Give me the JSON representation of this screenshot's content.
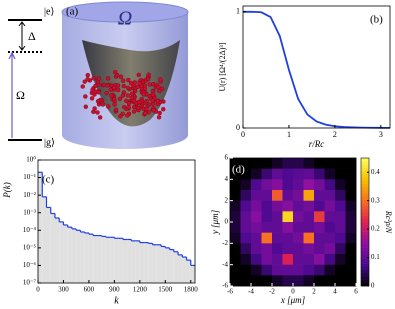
{
  "panels": {
    "a": {
      "label": "(a)",
      "excited": "|e⟩",
      "detuning": "Δ",
      "rabi": "Ω",
      "ground": "|g⟩",
      "cloud": "Ω"
    },
    "b": {
      "label": "(b)"
    },
    "c": {
      "label": "(c)"
    },
    "d": {
      "label": "(d)"
    }
  },
  "chart_data": [
    {
      "type": "line",
      "ylabel": "U(r) [Ω⁴/(2Δ)³]",
      "xlabel": "r/Rc",
      "color": "#1f3fe0",
      "x": [
        0,
        0.2,
        0.4,
        0.6,
        0.8,
        1.0,
        1.2,
        1.4,
        1.6,
        1.8,
        2.0,
        2.2,
        2.4,
        2.6,
        2.8,
        3.0,
        3.2
      ],
      "values": [
        1,
        1,
        0.996,
        0.955,
        0.792,
        0.5,
        0.251,
        0.117,
        0.056,
        0.029,
        0.015,
        0.0088,
        0.0052,
        0.0032,
        0.0021,
        0.0014,
        0.0009
      ],
      "xlim": [
        0,
        3.2
      ],
      "ylim": [
        0,
        1.05
      ],
      "xticks": [
        0,
        1,
        2,
        3
      ],
      "yticks": [
        0,
        1
      ]
    },
    {
      "type": "histogram",
      "ylabel": "P(k)",
      "xlabel": "k",
      "color": "#1f3fe0",
      "fill": "#e0e0e0",
      "log_y": true,
      "bins": [
        0,
        50,
        100,
        150,
        200,
        250,
        300,
        350,
        400,
        450,
        500,
        550,
        600,
        650,
        700,
        750,
        800,
        850,
        900,
        950,
        1000,
        1050,
        1100,
        1150,
        1200,
        1250,
        1300,
        1350,
        1400,
        1450,
        1500,
        1550,
        1600,
        1650,
        1700,
        1750,
        1800,
        1850
      ],
      "values": [
        0.2,
        0.008,
        0.002,
        0.0009,
        0.0005,
        0.0003,
        0.0002,
        0.00015,
        0.00012,
        0.0001,
        8e-05,
        7e-05,
        6e-05,
        5e-05,
        5e-05,
        4.5e-05,
        4e-05,
        4e-05,
        3.5e-05,
        3.5e-05,
        3e-05,
        3e-05,
        2.5e-05,
        2.5e-05,
        2e-05,
        2e-05,
        1.8e-05,
        1.5e-05,
        1.5e-05,
        1.2e-05,
        1e-05,
        8e-06,
        6e-06,
        4e-06,
        3e-06,
        2e-06,
        1e-06
      ],
      "xlim": [
        0,
        1850
      ],
      "ylim": [
        1e-07,
        1
      ],
      "xticks": [
        0,
        300,
        600,
        900,
        1200,
        1500,
        1800
      ],
      "yticks": [
        {
          "value": 1e-07,
          "label": "10⁻⁷"
        },
        {
          "value": 1e-06,
          "label": "10⁻⁶"
        },
        {
          "value": 1e-05,
          "label": "10⁻⁵"
        },
        {
          "value": 0.0001,
          "label": "10⁻⁴"
        },
        {
          "value": 0.001,
          "label": "10⁻³"
        },
        {
          "value": 0.01,
          "label": "10⁻²"
        },
        {
          "value": 0.1,
          "label": "10⁻¹"
        },
        {
          "value": 1,
          "label": "10⁰"
        }
      ]
    },
    {
      "type": "heatmap",
      "xlabel": "x [μm]",
      "ylabel": "y [μm]",
      "colorbar_label": "Rc²ρ/N",
      "colormap": [
        "#000000",
        "#4a0a90",
        "#9010a0",
        "#e02050",
        "#f87020",
        "#f8c000",
        "#ffff60"
      ],
      "clim": [
        0,
        0.45
      ],
      "cticks": [
        0,
        0.1,
        0.2,
        0.3,
        0.4
      ],
      "xlim": [
        -6,
        6
      ],
      "ylim": [
        -6,
        6
      ],
      "xticks": [
        -6,
        -4,
        -2,
        0,
        2,
        4,
        6
      ],
      "yticks": [
        -6,
        -4,
        -2,
        0,
        2,
        4,
        6
      ],
      "z": [
        [
          0,
          0,
          0,
          0,
          0.02,
          0.04,
          0.04,
          0.02,
          0,
          0,
          0,
          0
        ],
        [
          0,
          0,
          0.02,
          0.06,
          0.1,
          0.08,
          0.09,
          0.1,
          0.06,
          0.02,
          0,
          0
        ],
        [
          0,
          0.02,
          0.08,
          0.12,
          0.14,
          0.08,
          0.1,
          0.15,
          0.12,
          0.07,
          0.02,
          0
        ],
        [
          0,
          0.05,
          0.1,
          0.1,
          0.28,
          0.1,
          0.12,
          0.35,
          0.1,
          0.1,
          0.05,
          0
        ],
        [
          0.02,
          0.08,
          0.12,
          0.08,
          0.12,
          0.14,
          0.1,
          0.12,
          0.08,
          0.12,
          0.08,
          0.02
        ],
        [
          0.03,
          0.1,
          0.14,
          0.08,
          0.1,
          0.4,
          0.12,
          0.1,
          0.25,
          0.1,
          0.1,
          0.03
        ],
        [
          0.03,
          0.1,
          0.12,
          0.1,
          0.1,
          0.14,
          0.1,
          0.1,
          0.12,
          0.08,
          0.1,
          0.03
        ],
        [
          0.02,
          0.08,
          0.1,
          0.3,
          0.1,
          0.1,
          0.12,
          0.3,
          0.1,
          0.1,
          0.08,
          0.02
        ],
        [
          0,
          0.05,
          0.1,
          0.12,
          0.08,
          0.1,
          0.1,
          0.12,
          0.1,
          0.12,
          0.05,
          0
        ],
        [
          0,
          0.02,
          0.07,
          0.12,
          0.1,
          0.22,
          0.1,
          0.1,
          0.14,
          0.07,
          0.02,
          0
        ],
        [
          0,
          0,
          0.02,
          0.06,
          0.1,
          0.1,
          0.1,
          0.08,
          0.06,
          0.02,
          0,
          0
        ],
        [
          0,
          0,
          0,
          0,
          0.02,
          0.04,
          0.04,
          0.02,
          0,
          0,
          0,
          0
        ]
      ]
    }
  ]
}
